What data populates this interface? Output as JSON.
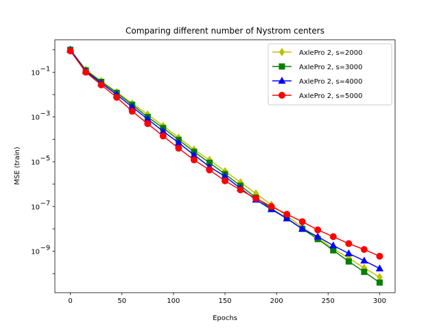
{
  "chart_data": {
    "type": "line",
    "title": "Comparing different number of Nystrom centers",
    "xlabel": "Epochs",
    "ylabel": "MSE (train)",
    "xlim": [
      -15,
      315
    ],
    "ylim_log10": [
      -10.85,
      0.45
    ],
    "yscale": "log",
    "grid": false,
    "legend_position": "top-right",
    "x_ticks": [
      0,
      50,
      100,
      150,
      200,
      250,
      300
    ],
    "x_tick_labels": [
      "0",
      "50",
      "100",
      "150",
      "200",
      "250",
      "300"
    ],
    "y_tick_exponents": [
      -9,
      -7,
      -5,
      -3,
      -1
    ],
    "y_tick_labels": [
      "10",
      "10",
      "10",
      "10",
      "10"
    ],
    "y_tick_superscripts": [
      "−9",
      "−7",
      "−5",
      "−3",
      "−1"
    ],
    "x": [
      0,
      15,
      30,
      45,
      60,
      75,
      90,
      105,
      120,
      135,
      150,
      165,
      180,
      195,
      210,
      225,
      240,
      255,
      270,
      285,
      300
    ],
    "series": [
      {
        "name": "AxlePro 2, s=2000",
        "color": "#bfbf00",
        "marker": "diamond",
        "values": [
          1.0,
          0.13,
          0.04,
          0.013,
          0.004,
          0.0013,
          0.0004,
          0.00012,
          3.5e-05,
          1.2e-05,
          3.8e-06,
          1.2e-06,
          3.8e-07,
          1.2e-07,
          3.8e-08,
          1.2e-08,
          4e-09,
          1.3e-09,
          5e-10,
          1.8e-10,
          7e-11
        ]
      },
      {
        "name": "AxlePro 2, s=3000",
        "color": "#008000",
        "marker": "square",
        "values": [
          1.0,
          0.12,
          0.037,
          0.012,
          0.0035,
          0.001,
          0.00032,
          9.5e-05,
          2.8e-05,
          9e-06,
          2.8e-06,
          8.5e-07,
          2.5e-07,
          8e-08,
          3e-08,
          1e-08,
          3.5e-09,
          1.1e-09,
          3.5e-10,
          1.2e-10,
          4e-11
        ]
      },
      {
        "name": "AxlePro 2, s=4000",
        "color": "#0000ff",
        "marker": "triangle",
        "values": [
          1.0,
          0.11,
          0.032,
          0.01,
          0.0028,
          0.0008,
          0.00023,
          7e-05,
          2e-05,
          6e-06,
          2.2e-06,
          6.5e-07,
          2e-07,
          7.5e-08,
          2.9e-08,
          1e-08,
          4.5e-09,
          1.8e-09,
          8e-10,
          3.8e-10,
          1.7e-10
        ]
      },
      {
        "name": "AxlePro 2, s=5000",
        "color": "#ff0000",
        "marker": "circle",
        "values": [
          0.9,
          0.1,
          0.027,
          0.0075,
          0.0018,
          0.0005,
          0.00014,
          4e-05,
          1.2e-05,
          4.3e-06,
          1.4e-06,
          5.5e-07,
          2.3e-07,
          1e-07,
          4.5e-08,
          2.1e-08,
          9e-09,
          4.5e-09,
          2.2e-09,
          1.2e-09,
          6e-10
        ]
      }
    ]
  }
}
